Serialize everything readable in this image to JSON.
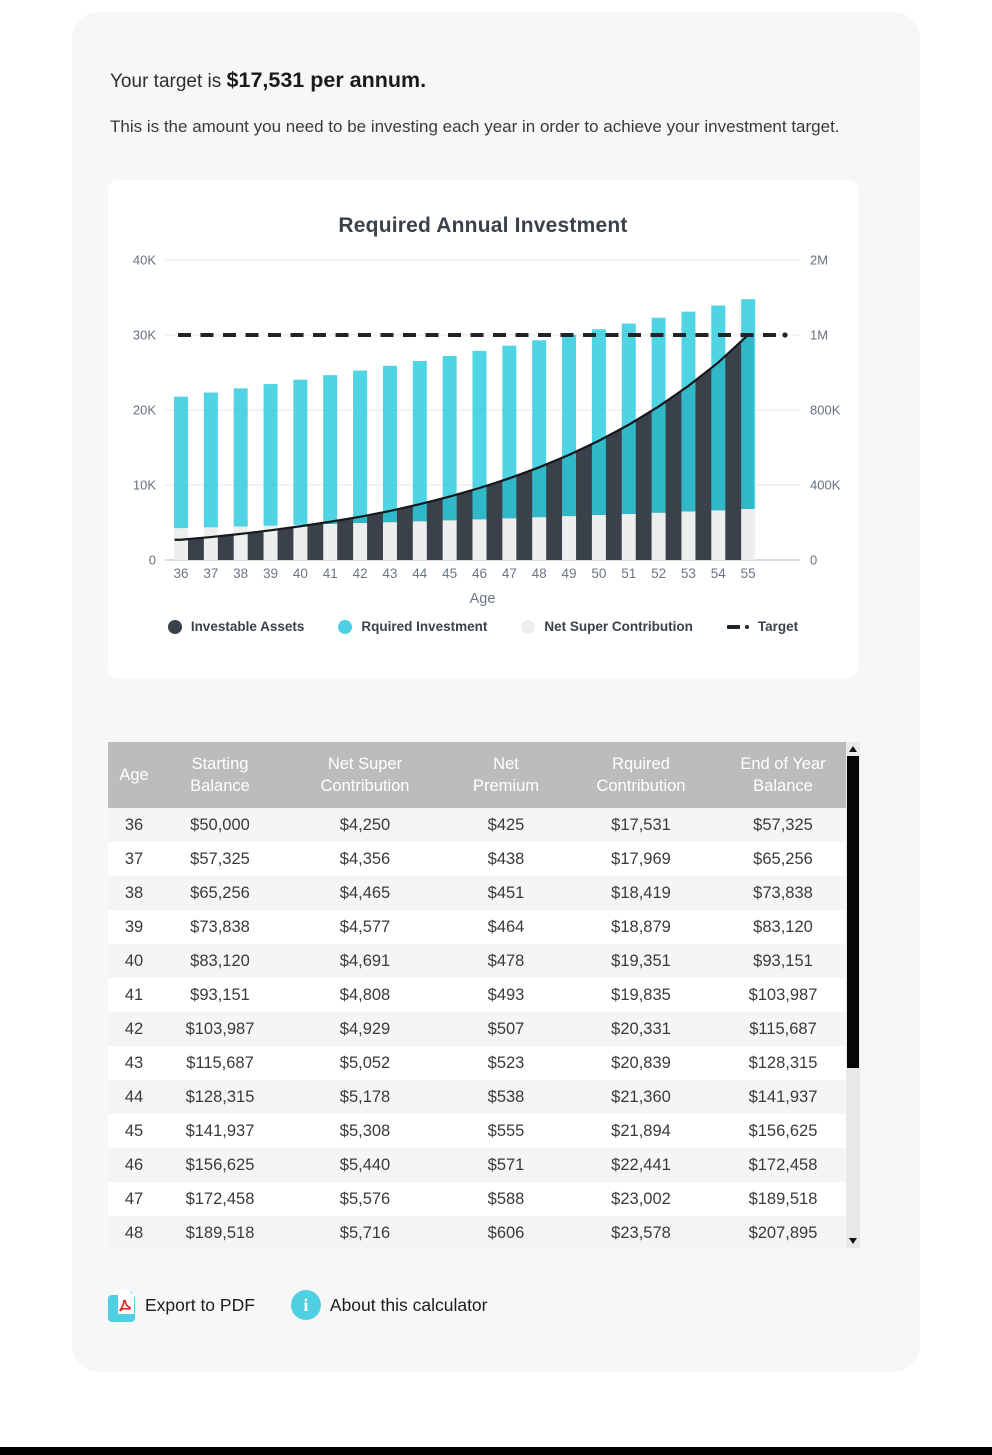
{
  "page": {
    "target_prefix": "Your target is ",
    "target_value": "$17,531 per annum.",
    "description": "This is the amount you need to be investing each year in order to achieve your investment target.",
    "footer": {
      "export_pdf": "Export to PDF",
      "about": "About this calculator"
    }
  },
  "colors": {
    "accent_cyan": "#4FD0E2",
    "bar_cyan_fill": "#2FCDDE",
    "dark_series": "#3A414B",
    "light_series": "#EDEFEF",
    "target_line": "#1F2429",
    "panel_bg": "#F7F7F7",
    "table_header_bg": "#BCBCBC",
    "row_stripe": "#F5F5F5",
    "pdf_red": "#E2231A"
  },
  "chart_data": {
    "type": "bar",
    "title": "Required Annual Investment",
    "xlabel": "Age",
    "x": [
      36,
      37,
      38,
      39,
      40,
      41,
      42,
      43,
      44,
      45,
      46,
      47,
      48,
      49,
      50,
      51,
      52,
      53,
      54,
      55
    ],
    "left_axis": {
      "ticks": [
        "40K",
        "30K",
        "20K",
        "10K",
        "0"
      ],
      "max": 40000,
      "min": 0
    },
    "right_axis": {
      "ticks": [
        "2M",
        "1M",
        "800K",
        "400K",
        "0"
      ]
    },
    "series": [
      {
        "name": "Investable Assets",
        "type": "area",
        "axis": "right",
        "values": [
          90000,
          102000,
          116000,
          132000,
          150000,
          170000,
          192000,
          218000,
          248000,
          282000,
          320000,
          363000,
          412000,
          467000,
          530000,
          601000,
          682000,
          774000,
          878000,
          1000000
        ]
      },
      {
        "name": "Rquired Investment",
        "type": "bar",
        "axis": "left",
        "stack_on": "Net Super Contribution",
        "values": [
          17531,
          17969,
          18419,
          18879,
          19351,
          19835,
          20331,
          20839,
          21360,
          21894,
          22441,
          23002,
          23578,
          24160,
          24757,
          25369,
          25996,
          26638,
          27297,
          27971
        ]
      },
      {
        "name": "Net Super Contribution",
        "type": "bar",
        "axis": "left",
        "values": [
          4250,
          4356,
          4465,
          4577,
          4691,
          4808,
          4929,
          5052,
          5178,
          5308,
          5440,
          5576,
          5716,
          5860,
          6008,
          6159,
          6314,
          6473,
          6636,
          6803
        ]
      }
    ],
    "target": {
      "label": "Target",
      "left_value": 30000,
      "right_equivalent": "1M"
    },
    "legend": [
      "Investable Assets",
      "Rquired Investment",
      "Net Super Contribution",
      "Target"
    ],
    "legend_position": "bottom",
    "grid": true,
    "right_axis_scale_note": "1M on right axis aligns with 30K gridline"
  },
  "table": {
    "header_lines": [
      [
        "Age"
      ],
      [
        "Starting",
        "Balance"
      ],
      [
        "Net Super",
        "Contribution"
      ],
      [
        "Net",
        "Premium"
      ],
      [
        "Rquired",
        "Contribution"
      ],
      [
        "End of Year",
        "Balance"
      ]
    ],
    "rows": [
      [
        "36",
        "$50,000",
        "$4,250",
        "$425",
        "$17,531",
        "$57,325"
      ],
      [
        "37",
        "$57,325",
        "$4,356",
        "$438",
        "$17,969",
        "$65,256"
      ],
      [
        "38",
        "$65,256",
        "$4,465",
        "$451",
        "$18,419",
        "$73,838"
      ],
      [
        "39",
        "$73,838",
        "$4,577",
        "$464",
        "$18,879",
        "$83,120"
      ],
      [
        "40",
        "$83,120",
        "$4,691",
        "$478",
        "$19,351",
        "$93,151"
      ],
      [
        "41",
        "$93,151",
        "$4,808",
        "$493",
        "$19,835",
        "$103,987"
      ],
      [
        "42",
        "$103,987",
        "$4,929",
        "$507",
        "$20,331",
        "$115,687"
      ],
      [
        "43",
        "$115,687",
        "$5,052",
        "$523",
        "$20,839",
        "$128,315"
      ],
      [
        "44",
        "$128,315",
        "$5,178",
        "$538",
        "$21,360",
        "$141,937"
      ],
      [
        "45",
        "$141,937",
        "$5,308",
        "$555",
        "$21,894",
        "$156,625"
      ],
      [
        "46",
        "$156,625",
        "$5,440",
        "$571",
        "$22,441",
        "$172,458"
      ],
      [
        "47",
        "$172,458",
        "$5,576",
        "$588",
        "$23,002",
        "$189,518"
      ],
      [
        "48",
        "$189,518",
        "$5,716",
        "$606",
        "$23,578",
        "$207,895"
      ]
    ]
  }
}
